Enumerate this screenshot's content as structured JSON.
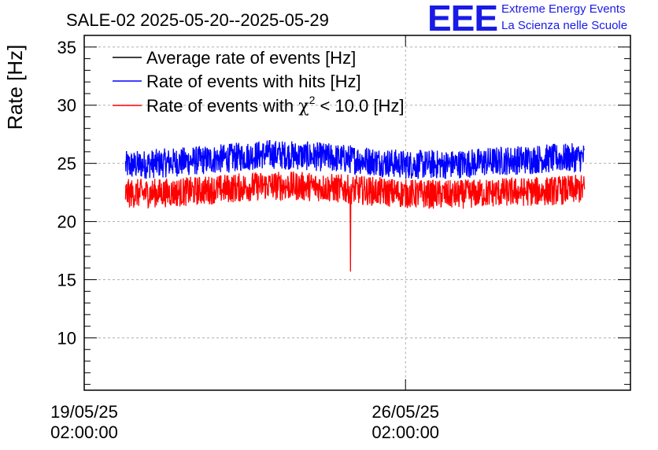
{
  "logo": {
    "mark": "EEE",
    "line1": "Extreme Energy Events",
    "line2": "La Scienza nelle Scuole",
    "color": "#1a1ae6"
  },
  "chart_data": {
    "type": "line",
    "title": "SALE-02 2025-05-20--2025-05-29",
    "xlabel": "",
    "ylabel": "Rate [Hz]",
    "ylim": [
      5.5,
      36
    ],
    "xlim_days": [
      0,
      11.9
    ],
    "yticks": [
      10,
      15,
      20,
      25,
      30,
      35
    ],
    "xticks": [
      {
        "day": 0,
        "line1": "19/05/25",
        "line2": "02:00:00"
      },
      {
        "day": 7,
        "line1": "26/05/25",
        "line2": "02:00:00"
      }
    ],
    "grid": true,
    "legend_position": "top-left",
    "x_start_day": 0.9,
    "x_end_day": 10.9,
    "series": [
      {
        "name": "Average rate of events [Hz]",
        "color": "#000000",
        "mean": 24.6,
        "spread": 0.0,
        "values_by_day": []
      },
      {
        "name": "Rate of events with hits [Hz]",
        "color": "#0000ff",
        "mean": 25.4,
        "spread": 0.9,
        "values_by_day": [
          [
            0.9,
            24.8
          ],
          [
            2.0,
            25.1
          ],
          [
            3.0,
            25.4
          ],
          [
            4.0,
            25.8
          ],
          [
            5.0,
            25.6
          ],
          [
            6.0,
            25.3
          ],
          [
            7.0,
            24.9
          ],
          [
            8.0,
            24.9
          ],
          [
            9.0,
            25.2
          ],
          [
            10.0,
            25.4
          ],
          [
            10.9,
            25.5
          ]
        ]
      },
      {
        "name": "Rate of events with χ2 < 10.0 [Hz]",
        "color": "#ff0000",
        "mean": 22.7,
        "spread": 0.9,
        "values_by_day": [
          [
            0.9,
            22.4
          ],
          [
            2.0,
            22.5
          ],
          [
            3.0,
            22.8
          ],
          [
            4.0,
            23.1
          ],
          [
            5.0,
            23.0
          ],
          [
            6.0,
            22.7
          ],
          [
            7.0,
            22.4
          ],
          [
            8.0,
            22.3
          ],
          [
            9.0,
            22.5
          ],
          [
            10.0,
            22.6
          ],
          [
            10.9,
            22.8
          ]
        ],
        "dip": {
          "day": 5.8,
          "value": 15.7
        }
      }
    ],
    "legend": {
      "entry1": "Average rate of events [Hz]",
      "entry2": "Rate of events with hits [Hz]",
      "entry3_prefix": "Rate of events with ",
      "entry3_symbol": "χ",
      "entry3_sup": "2",
      "entry3_suffix": " < 10.0 [Hz]"
    }
  }
}
